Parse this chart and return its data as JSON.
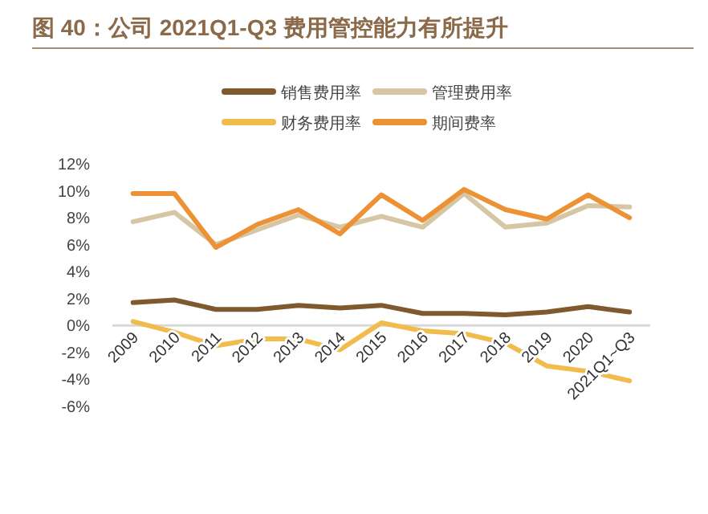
{
  "chart_data": {
    "type": "line",
    "title": "图 40：公司 2021Q1-Q3 费用管控能力有所提升",
    "categories": [
      "2009",
      "2010",
      "2011",
      "2012",
      "2013",
      "2014",
      "2015",
      "2016",
      "2017",
      "2018",
      "2019",
      "2020",
      "2021Q1~Q3"
    ],
    "series": [
      {
        "name": "销售费用率",
        "color": "#7f5a2e",
        "values": [
          1.7,
          1.9,
          1.2,
          1.2,
          1.5,
          1.3,
          1.5,
          0.9,
          0.9,
          0.8,
          1.0,
          1.4,
          1.0
        ]
      },
      {
        "name": "管理费用率",
        "color": "#d6c6a3",
        "values": [
          7.7,
          8.4,
          6.0,
          7.1,
          8.2,
          7.3,
          8.1,
          7.3,
          9.8,
          7.3,
          7.6,
          8.9,
          8.8
        ]
      },
      {
        "name": "财务费用率",
        "color": "#f0bc4c",
        "values": [
          0.3,
          -0.5,
          -1.5,
          -1.0,
          -1.0,
          -1.8,
          0.2,
          -0.4,
          -0.6,
          -1.3,
          -3.0,
          -3.4,
          -4.1
        ]
      },
      {
        "name": "期间费率",
        "color": "#ec9235",
        "values": [
          9.8,
          9.8,
          5.8,
          7.5,
          8.6,
          6.8,
          9.7,
          7.8,
          10.1,
          8.6,
          7.9,
          9.7,
          8.0
        ]
      }
    ],
    "ylim": [
      -6,
      12
    ],
    "yticks": [
      {
        "value": -6,
        "label": "-6%"
      },
      {
        "value": -4,
        "label": "-4%"
      },
      {
        "value": -2,
        "label": "-2%"
      },
      {
        "value": 0,
        "label": "0%"
      },
      {
        "value": 2,
        "label": "2%"
      },
      {
        "value": 4,
        "label": "4%"
      },
      {
        "value": 6,
        "label": "6%"
      },
      {
        "value": 8,
        "label": "8%"
      },
      {
        "value": 10,
        "label": "10%"
      },
      {
        "value": 12,
        "label": "12%"
      }
    ],
    "grid": false,
    "legend": "top",
    "marker": "none",
    "line_style": "solid"
  }
}
